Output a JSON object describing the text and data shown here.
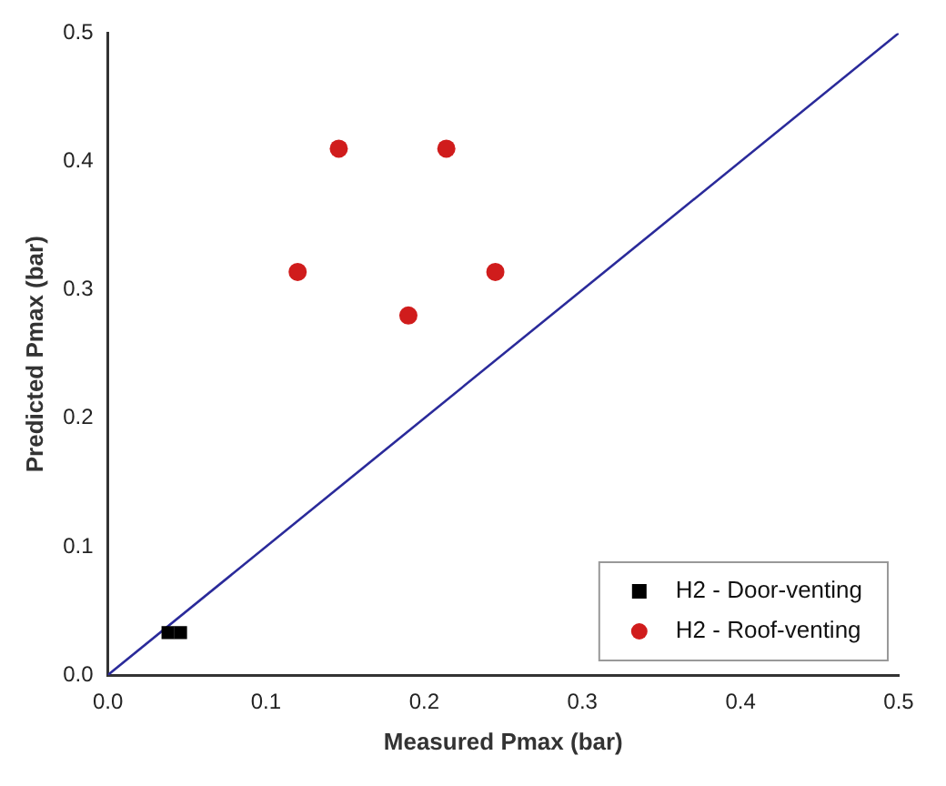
{
  "chart_data": {
    "type": "scatter",
    "xlabel": "Measured Pmax (bar)",
    "ylabel": "Predicted Pmax (bar)",
    "xlim": [
      0,
      0.5
    ],
    "ylim": [
      0,
      0.5
    ],
    "xticks": [
      {
        "value": 0,
        "label": "0.0"
      },
      0.1,
      0.2,
      0.3,
      0.4,
      0.5
    ],
    "yticks": [
      {
        "value": 0,
        "label": "0.0"
      },
      0.1,
      0.2,
      0.3,
      0.4,
      0.5
    ],
    "grid": false,
    "legend": "bottom right",
    "series": [
      {
        "name": "H2 - Door-venting",
        "color": "#000000",
        "marker": "square",
        "x": [
          0.038,
          0.046
        ],
        "values": [
          0.033,
          0.033
        ]
      },
      {
        "name": "H2 - Roof-venting",
        "color": "#d01c1c",
        "marker": "circle",
        "x": [
          0.146,
          0.214,
          0.12,
          0.245,
          0.19
        ],
        "values": [
          0.41,
          0.41,
          0.314,
          0.314,
          0.28
        ]
      },
      {
        "type": "line",
        "color": "#2a2a9a",
        "marker": "none",
        "x": [
          0,
          0.5
        ],
        "values": [
          0,
          0.5
        ]
      }
    ]
  }
}
